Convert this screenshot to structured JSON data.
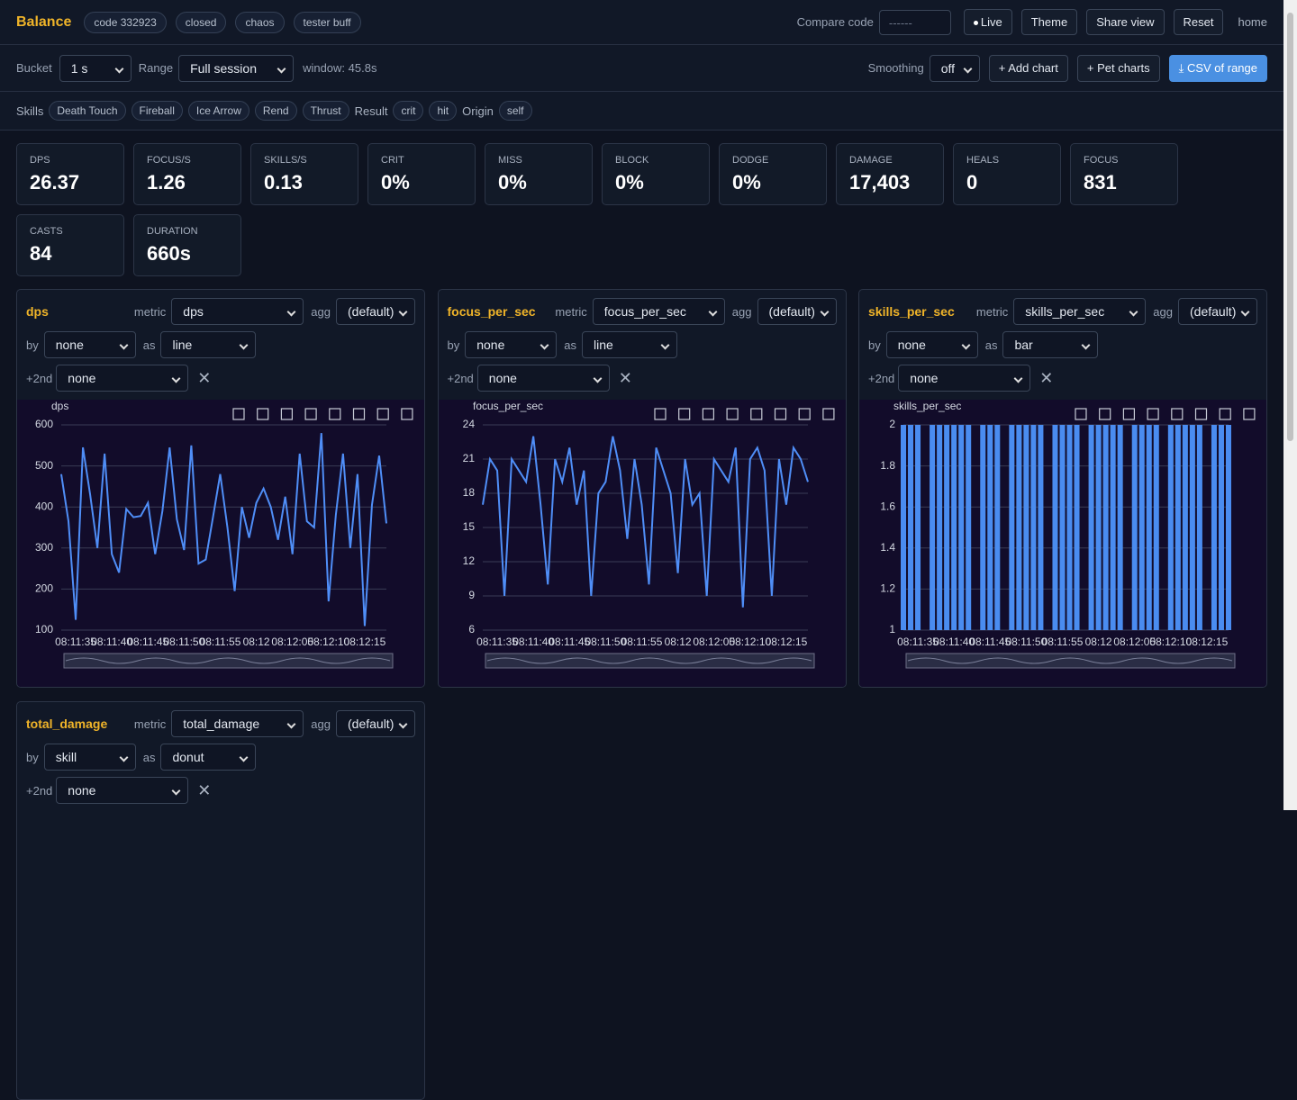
{
  "header": {
    "title": "Balance",
    "chips": [
      "code 332923",
      "closed",
      "chaos",
      "tester buff"
    ],
    "compare_label": "Compare code",
    "compare_placeholder": "------",
    "buttons": [
      "Live",
      "Theme",
      "Share view",
      "Reset"
    ],
    "link": "home"
  },
  "toolbar": {
    "bucket_label": "Bucket",
    "bucket": "1 s",
    "range_label": "Range",
    "range": "Full session",
    "window": "window: 45.8s",
    "smoothing_label": "Smoothing",
    "smoothing": "off",
    "buttons": [
      "+ Add chart",
      "+ Pet charts",
      "⤓ CSV of range"
    ]
  },
  "filters": [
    {
      "label": "Skills",
      "chips": [
        "Death Touch",
        "Fireball",
        "Ice Arrow",
        "Rend",
        "Thrust"
      ]
    },
    {
      "label": "Result",
      "chips": [
        "crit",
        "hit"
      ]
    },
    {
      "label": "Origin",
      "chips": [
        "self"
      ]
    }
  ],
  "stats": [
    {
      "label": "DPS",
      "value": "26.37"
    },
    {
      "label": "FOCUS/S",
      "value": "1.26"
    },
    {
      "label": "SKILLS/S",
      "value": "0.13"
    },
    {
      "label": "CRIT",
      "value": "0%"
    },
    {
      "label": "MISS",
      "value": "0%"
    },
    {
      "label": "BLOCK",
      "value": "0%"
    },
    {
      "label": "DODGE",
      "value": "0%"
    },
    {
      "label": "DAMAGE",
      "value": "17,403"
    },
    {
      "label": "HEALS",
      "value": "0"
    },
    {
      "label": "FOCUS",
      "value": "831"
    },
    {
      "label": "CASTS",
      "value": "84"
    },
    {
      "label": "DURATION",
      "value": "660s"
    }
  ],
  "panels": [
    {
      "title": "dps",
      "metric_label": "metric",
      "metric": "dps",
      "agg_label": "agg",
      "agg": "(default)",
      "by_label": "by",
      "by": "none",
      "as_label": "as",
      "as": "line",
      "second_label": "+2nd",
      "second": "none"
    },
    {
      "title": "focus_per_sec",
      "metric_label": "metric",
      "metric": "focus_per_sec",
      "agg_label": "agg",
      "agg": "(default)",
      "by_label": "by",
      "by": "none",
      "as_label": "as",
      "as": "line",
      "second_label": "+2nd",
      "second": "none"
    },
    {
      "title": "skills_per_sec",
      "metric_label": "metric",
      "metric": "skills_per_sec",
      "agg_label": "agg",
      "agg": "(default)",
      "by_label": "by",
      "by": "none",
      "as_label": "as",
      "as": "bar",
      "second_label": "+2nd",
      "second": "none"
    },
    {
      "title": "total_damage",
      "metric_label": "metric",
      "metric": "total_damage",
      "agg_label": "agg",
      "agg": "(default)",
      "by_label": "by",
      "by": "skill",
      "as_label": "as",
      "as": "donut",
      "second_label": "+2nd",
      "second": "none"
    }
  ],
  "chart_data": [
    {
      "type": "line",
      "y_label": "dps",
      "color": "#4f8ef7",
      "grid": true,
      "ylim": [
        100,
        600
      ],
      "yticks": [
        100,
        200,
        300,
        400,
        500,
        600
      ],
      "categories": [
        null,
        null,
        "08:11:35",
        null,
        null,
        null,
        null,
        "08:11:40",
        null,
        null,
        null,
        null,
        "08:11:45",
        null,
        null,
        null,
        null,
        "08:11:50",
        null,
        null,
        null,
        null,
        "08:11:55",
        null,
        null,
        null,
        null,
        "08:12",
        null,
        null,
        null,
        null,
        "08:12:05",
        null,
        null,
        null,
        null,
        "08:12:10",
        null,
        null,
        null,
        null,
        "08:12:15",
        null,
        null,
        null
      ],
      "values": [
        480,
        365,
        125,
        545,
        430,
        300,
        530,
        285,
        240,
        395,
        375,
        378,
        410,
        285,
        390,
        545,
        370,
        295,
        550,
        262,
        272,
        375,
        480,
        350,
        195,
        400,
        325,
        410,
        445,
        400,
        320,
        425,
        285,
        530,
        365,
        350,
        580,
        170,
        380,
        530,
        300,
        480,
        110,
        405,
        525,
        360
      ]
    },
    {
      "type": "line",
      "y_label": "focus_per_sec",
      "color": "#4f8ef7",
      "grid": true,
      "ylim": [
        6,
        24
      ],
      "yticks": [
        6,
        9,
        12,
        15,
        18,
        21,
        24
      ],
      "categories": [
        null,
        null,
        "08:11:35",
        null,
        null,
        null,
        null,
        "08:11:40",
        null,
        null,
        null,
        null,
        "08:11:45",
        null,
        null,
        null,
        null,
        "08:11:50",
        null,
        null,
        null,
        null,
        "08:11:55",
        null,
        null,
        null,
        null,
        "08:12",
        null,
        null,
        null,
        null,
        "08:12:05",
        null,
        null,
        null,
        null,
        "08:12:10",
        null,
        null,
        null,
        null,
        "08:12:15",
        null,
        null,
        null
      ],
      "values": [
        17,
        21,
        20,
        9,
        21,
        20,
        19,
        23,
        17,
        10,
        21,
        19,
        22,
        17,
        20,
        9,
        18,
        19,
        23,
        20,
        14,
        21,
        17,
        10,
        22,
        20,
        18,
        11,
        21,
        17,
        18,
        9,
        21,
        20,
        19,
        22,
        8,
        21,
        22,
        20,
        9,
        21,
        17,
        22,
        21,
        19
      ]
    },
    {
      "type": "bar",
      "y_label": "skills_per_sec",
      "color": "#4a8cf0",
      "grid": true,
      "ylim": [
        1,
        2
      ],
      "yticks": [
        1,
        1.2,
        1.4,
        1.6,
        1.8,
        2
      ],
      "categories": [
        null,
        null,
        "08:11:35",
        null,
        null,
        null,
        null,
        "08:11:40",
        null,
        null,
        null,
        null,
        "08:11:45",
        null,
        null,
        null,
        null,
        "08:11:50",
        null,
        null,
        null,
        null,
        "08:11:55",
        null,
        null,
        null,
        null,
        "08:12",
        null,
        null,
        null,
        null,
        "08:12:05",
        null,
        null,
        null,
        null,
        "08:12:10",
        null,
        null,
        null,
        null,
        "08:12:15",
        null,
        null,
        null
      ],
      "values": [
        2,
        2,
        2,
        null,
        2,
        2,
        2,
        2,
        2,
        2,
        null,
        2,
        2,
        2,
        null,
        2,
        2,
        2,
        2,
        2,
        null,
        2,
        2,
        2,
        2,
        null,
        2,
        2,
        2,
        2,
        2,
        null,
        2,
        2,
        2,
        2,
        null,
        2,
        2,
        2,
        2,
        2,
        null,
        2,
        2,
        2
      ]
    }
  ]
}
